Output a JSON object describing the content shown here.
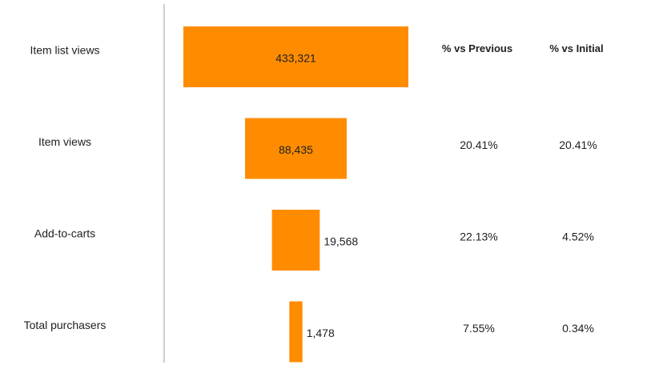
{
  "chart_data": {
    "type": "bar",
    "orientation": "horizontal-centered-funnel",
    "categories": [
      "Item list views",
      "Item views",
      "Add-to-carts",
      "Total purchasers"
    ],
    "values": [
      433321,
      88435,
      19568,
      1478
    ],
    "value_labels": [
      "433,321",
      "88,435",
      "19,568",
      "1,478"
    ],
    "columns": {
      "vs_previous_header": "% vs Previous",
      "vs_initial_header": "% vs Initial",
      "vs_previous": [
        "",
        "20.41%",
        "22.13%",
        "7.55%"
      ],
      "vs_initial": [
        "",
        "20.41%",
        "4.52%",
        "0.34%"
      ]
    },
    "colors": {
      "bar": "#ff8c00",
      "divider": "#bdbdbd"
    }
  }
}
